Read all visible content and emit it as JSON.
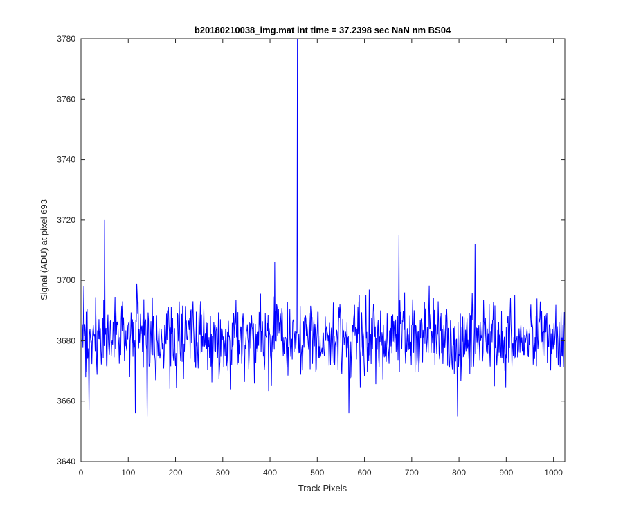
{
  "chart_data": {
    "type": "line",
    "title": "b20180210038_img.mat int time = 37.2398 sec  NaN nm BS04",
    "xlabel": "Track Pixels",
    "ylabel": "Signal (ADU) at pixel 693",
    "xlim": [
      0,
      1024
    ],
    "ylim": [
      3640,
      3780
    ],
    "xticks": [
      0,
      100,
      200,
      300,
      400,
      500,
      600,
      700,
      800,
      900,
      1000
    ],
    "yticks": [
      3640,
      3660,
      3680,
      3700,
      3720,
      3740,
      3760,
      3780
    ],
    "grid": false,
    "series_color": "#0000ff",
    "axis_color": "#262626",
    "noise": {
      "n_points": 1024,
      "seed": 38,
      "mean": 3681,
      "spread": 6.5,
      "min": 3655,
      "max": 3716
    },
    "notable_points": [
      {
        "x": 17,
        "y": 3657
      },
      {
        "x": 50,
        "y": 3720
      },
      {
        "x": 115,
        "y": 3656
      },
      {
        "x": 140,
        "y": 3655
      },
      {
        "x": 410,
        "y": 3706
      },
      {
        "x": 458,
        "y": 3780
      },
      {
        "x": 567,
        "y": 3656
      },
      {
        "x": 673,
        "y": 3715
      },
      {
        "x": 797,
        "y": 3655
      },
      {
        "x": 834,
        "y": 3712
      }
    ]
  }
}
